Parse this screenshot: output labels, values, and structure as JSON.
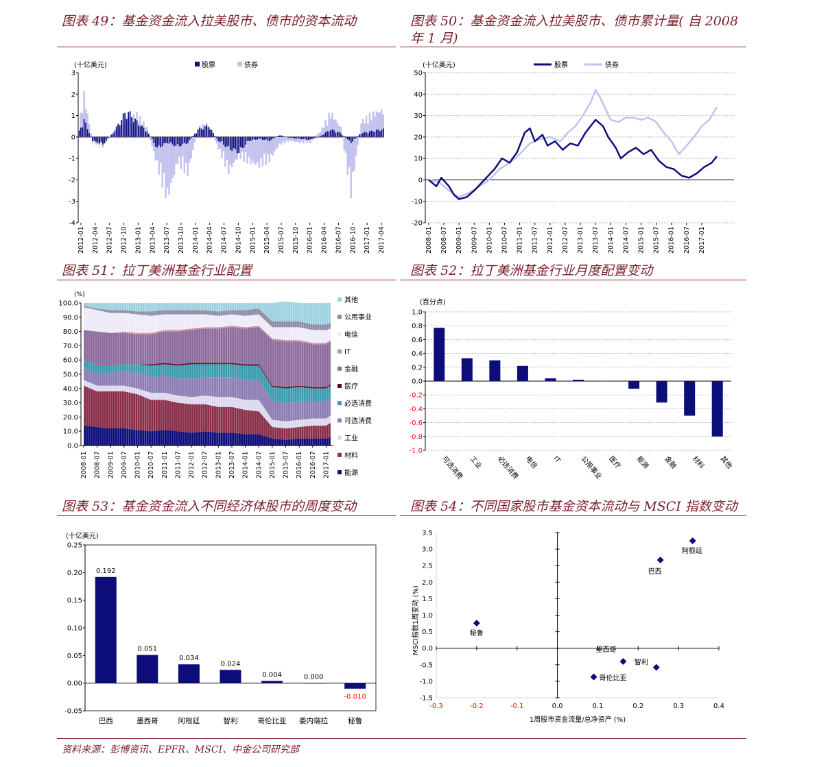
{
  "panels": {
    "p49": {
      "title": "图表 49：基金资金流入拉美股市、债市的资本流动"
    },
    "p50": {
      "title_line1": "图表 50：基金资金流入拉美股市、债市累计量( 自 2008",
      "title_line2": "年 1 月)"
    },
    "p51": {
      "title": "图表 51：拉丁美洲基金行业配置"
    },
    "p52": {
      "title": "图表 52：拉丁美洲基金行业月度配置变动"
    },
    "p53": {
      "title": "图表 53：基金资金流入不同经济体股市的周度变动"
    },
    "p54": {
      "title": "图表 54：不同国家股市基金资本流动与 MSCI 指数变动"
    }
  },
  "source": "资料来源：彭博资讯、EPFR、MSCI、中金公司研究部",
  "colors": {
    "navy": "#0d0d7a",
    "lavender": "#c2c2ee",
    "teal": "#3a9cae",
    "maroon": "#8a2e4a",
    "purple": "#8c7cb4",
    "grayviolet": "#8e8aa6",
    "lightlav": "#dcd8ee",
    "lightblue": "#9cd2df",
    "red": "#ff0000"
  },
  "chart_data": [
    {
      "id": "c49",
      "type": "bar",
      "unit_label": "(十亿美元)",
      "legend": [
        "股票",
        "债券"
      ],
      "ylim": [
        -4,
        3
      ],
      "yticks": [
        "3",
        "2",
        "1",
        "0",
        "-1",
        "-2",
        "-3",
        "-4"
      ],
      "xticks": [
        "2012-01",
        "2012-04",
        "2012-07",
        "2012-10",
        "2013-01",
        "2013-04",
        "2013-07",
        "2013-10",
        "2014-01",
        "2014-04",
        "2014-07",
        "2014-10",
        "2015-01",
        "2015-04",
        "2015-07",
        "2015-10",
        "2016-01",
        "2016-04",
        "2016-07",
        "2016-10",
        "2017-01",
        "2017-04"
      ],
      "series": [
        {
          "name": "股票",
          "anchors": [
            [
              0,
              0.3
            ],
            [
              3,
              0.9
            ],
            [
              8,
              -0.2
            ],
            [
              14,
              -0.4
            ],
            [
              20,
              0.2
            ],
            [
              28,
              1.4
            ],
            [
              34,
              0.8
            ],
            [
              40,
              0.3
            ],
            [
              46,
              -0.6
            ],
            [
              52,
              -0.3
            ],
            [
              58,
              -0.5
            ],
            [
              64,
              -0.3
            ],
            [
              70,
              0.4
            ],
            [
              76,
              0.6
            ],
            [
              82,
              -0.2
            ],
            [
              88,
              -0.6
            ],
            [
              94,
              -0.8
            ],
            [
              100,
              -0.2
            ],
            [
              106,
              -0.1
            ],
            [
              112,
              -0.2
            ],
            [
              118,
              0.1
            ],
            [
              124,
              -0.05
            ],
            [
              130,
              -0.1
            ],
            [
              136,
              -0.15
            ],
            [
              142,
              0.05
            ],
            [
              148,
              0.4
            ],
            [
              154,
              0.2
            ],
            [
              160,
              -0.3
            ],
            [
              166,
              0.2
            ],
            [
              172,
              0.3
            ],
            [
              178,
              0.4
            ]
          ]
        },
        {
          "name": "债券",
          "anchors": [
            [
              0,
              0.6
            ],
            [
              3,
              2.2
            ],
            [
              8,
              -0.3
            ],
            [
              14,
              -0.5
            ],
            [
              20,
              0.3
            ],
            [
              28,
              1.0
            ],
            [
              34,
              1.2
            ],
            [
              40,
              0.5
            ],
            [
              46,
              -1.5
            ],
            [
              52,
              -3.2
            ],
            [
              58,
              -1.3
            ],
            [
              64,
              -1.9
            ],
            [
              70,
              0.5
            ],
            [
              76,
              0.7
            ],
            [
              82,
              -0.6
            ],
            [
              88,
              -1.8
            ],
            [
              94,
              -1.0
            ],
            [
              100,
              -1.3
            ],
            [
              106,
              -1.5
            ],
            [
              112,
              -1.2
            ],
            [
              118,
              -0.4
            ],
            [
              124,
              -0.2
            ],
            [
              130,
              -0.3
            ],
            [
              136,
              -0.3
            ],
            [
              142,
              0.3
            ],
            [
              148,
              1.3
            ],
            [
              154,
              0.5
            ],
            [
              160,
              -2.9
            ],
            [
              166,
              0.8
            ],
            [
              172,
              1.2
            ],
            [
              178,
              1.4
            ]
          ]
        }
      ]
    },
    {
      "id": "c50",
      "type": "line",
      "unit_label": "(十亿美元)",
      "legend": [
        "股票",
        "债券"
      ],
      "ylim": [
        -20,
        50
      ],
      "yticks": [
        "50",
        "40",
        "30",
        "20",
        "10",
        "0",
        "-10",
        "-20"
      ],
      "xticks": [
        "2008-01",
        "2008-07",
        "2009-01",
        "2009-07",
        "2010-01",
        "2010-07",
        "2011-01",
        "2011-07",
        "2012-01",
        "2012-07",
        "2013-01",
        "2013-07",
        "2014-01",
        "2014-07",
        "2015-01",
        "2015-07",
        "2016-01",
        "2016-07",
        "2017-01"
      ],
      "x_range": [
        0,
        114
      ],
      "series": [
        {
          "name": "股票",
          "points": [
            [
              0,
              0
            ],
            [
              3,
              -3
            ],
            [
              5,
              1
            ],
            [
              8,
              -3
            ],
            [
              10,
              -7
            ],
            [
              12,
              -9
            ],
            [
              15,
              -8
            ],
            [
              18,
              -5
            ],
            [
              22,
              0
            ],
            [
              26,
              5
            ],
            [
              29,
              10
            ],
            [
              32,
              8
            ],
            [
              35,
              13
            ],
            [
              38,
              22
            ],
            [
              40,
              24
            ],
            [
              42,
              18
            ],
            [
              45,
              21
            ],
            [
              47,
              16
            ],
            [
              50,
              18
            ],
            [
              53,
              14
            ],
            [
              56,
              17
            ],
            [
              59,
              16
            ],
            [
              62,
              22
            ],
            [
              66,
              28
            ],
            [
              69,
              25
            ],
            [
              71,
              20
            ],
            [
              74,
              15
            ],
            [
              76,
              10
            ],
            [
              79,
              13
            ],
            [
              82,
              15
            ],
            [
              85,
              12
            ],
            [
              88,
              14
            ],
            [
              91,
              9
            ],
            [
              94,
              6
            ],
            [
              97,
              5
            ],
            [
              100,
              2
            ],
            [
              103,
              1
            ],
            [
              106,
              3
            ],
            [
              109,
              6
            ],
            [
              112,
              8
            ],
            [
              114,
              11
            ]
          ]
        },
        {
          "name": "债券",
          "points": [
            [
              0,
              0
            ],
            [
              4,
              -1
            ],
            [
              8,
              -5
            ],
            [
              12,
              -8
            ],
            [
              16,
              -6
            ],
            [
              20,
              -3
            ],
            [
              24,
              0
            ],
            [
              28,
              5
            ],
            [
              32,
              8
            ],
            [
              36,
              12
            ],
            [
              40,
              17
            ],
            [
              44,
              19
            ],
            [
              48,
              20
            ],
            [
              52,
              18
            ],
            [
              55,
              22
            ],
            [
              58,
              25
            ],
            [
              61,
              30
            ],
            [
              64,
              36
            ],
            [
              66,
              42
            ],
            [
              68,
              38
            ],
            [
              70,
              33
            ],
            [
              72,
              28
            ],
            [
              75,
              27
            ],
            [
              78,
              29
            ],
            [
              81,
              29
            ],
            [
              84,
              28
            ],
            [
              87,
              29
            ],
            [
              90,
              27
            ],
            [
              93,
              22
            ],
            [
              96,
              18
            ],
            [
              99,
              12
            ],
            [
              102,
              16
            ],
            [
              105,
              20
            ],
            [
              108,
              25
            ],
            [
              111,
              28
            ],
            [
              114,
              34
            ]
          ]
        }
      ]
    },
    {
      "id": "c51",
      "type": "area",
      "unit_label": "(%)",
      "ylim": [
        0,
        100
      ],
      "yticks": [
        "100.0",
        "90.0",
        "80.0",
        "70.0",
        "60.0",
        "50.0",
        "40.0",
        "30.0",
        "20.0",
        "10.0",
        "0.0"
      ],
      "xticks": [
        "2008-01",
        "2008-07",
        "2009-01",
        "2009-07",
        "2010-01",
        "2010-07",
        "2011-01",
        "2011-07",
        "2012-01",
        "2012-07",
        "2013-01",
        "2013-07",
        "2014-01",
        "2014-07",
        "2015-01",
        "2015-07",
        "2016-01",
        "2016-07",
        "2017-01"
      ],
      "legend": [
        "其他",
        "公用事业",
        "电信",
        "IT",
        "金融",
        "医疗",
        "必选消费",
        "可选消费",
        "工业",
        "材料",
        "能源"
      ],
      "stack_order": [
        "能源",
        "材料",
        "工业",
        "可选消费",
        "必选消费",
        "医疗",
        "金融",
        "IT",
        "电信",
        "公用事业",
        "其他"
      ],
      "times": [
        0,
        6,
        12,
        18,
        24,
        30,
        36,
        42,
        48,
        54,
        60,
        66,
        72,
        78,
        84,
        90,
        96,
        102,
        108,
        110
      ],
      "layers": [
        [
          14,
          13,
          12,
          12,
          11,
          10,
          11,
          10,
          9,
          10,
          9,
          9,
          8,
          8,
          5,
          4,
          5,
          5,
          5,
          6
        ],
        [
          28,
          25,
          26,
          26,
          25,
          22,
          21,
          20,
          20,
          19,
          18,
          18,
          17,
          16,
          8,
          8,
          8,
          9,
          9,
          10
        ],
        [
          4,
          4,
          4,
          4,
          4,
          5,
          5,
          5,
          5,
          6,
          7,
          7,
          7,
          8,
          5,
          5,
          5,
          5,
          5,
          5
        ],
        [
          9,
          8,
          9,
          10,
          11,
          11,
          12,
          12,
          13,
          13,
          14,
          14,
          14,
          14,
          13,
          13,
          13,
          12,
          12,
          12
        ],
        [
          5,
          6,
          5,
          5,
          6,
          8,
          8,
          9,
          10,
          9,
          9,
          9,
          10,
          10,
          10,
          10,
          10,
          9,
          9,
          9
        ],
        [
          0,
          0,
          0,
          0,
          0,
          1,
          1,
          1,
          1,
          1,
          1,
          1,
          1,
          1,
          1,
          1,
          1,
          1,
          1,
          1
        ],
        [
          21,
          24,
          23,
          22,
          21,
          21,
          22,
          23,
          23,
          24,
          24,
          25,
          25,
          26,
          32,
          32,
          31,
          30,
          30,
          30
        ],
        [
          0,
          0,
          0,
          1,
          1,
          1,
          1,
          1,
          1,
          1,
          1,
          1,
          1,
          1,
          1,
          1,
          1,
          1,
          1,
          1
        ],
        [
          16,
          15,
          14,
          13,
          13,
          12,
          11,
          11,
          10,
          9,
          8,
          8,
          8,
          8,
          8,
          9,
          9,
          9,
          9,
          8
        ],
        [
          1,
          1,
          2,
          2,
          2,
          3,
          3,
          3,
          3,
          3,
          3,
          3,
          4,
          4,
          4,
          4,
          4,
          4,
          4,
          4
        ],
        [
          2,
          4,
          5,
          5,
          6,
          6,
          5,
          5,
          5,
          5,
          6,
          5,
          5,
          4,
          13,
          14,
          13,
          15,
          15,
          14
        ]
      ]
    },
    {
      "id": "c52",
      "type": "bar",
      "unit_label": "(百分点)",
      "ylim": [
        -1.0,
        1.0
      ],
      "yticks": [
        "1.0",
        "0.8",
        "0.6",
        "0.4",
        "0.2",
        "0.0",
        "-0.2",
        "-0.4",
        "-0.6",
        "-0.8",
        "-1.0"
      ],
      "categories": [
        "可选消费",
        "工业",
        "必选消费",
        "电信",
        "IT",
        "公用事业",
        "医疗",
        "能源",
        "金融",
        "材料",
        "其他"
      ],
      "values": [
        0.77,
        0.33,
        0.3,
        0.22,
        0.04,
        0.02,
        0.005,
        -0.11,
        -0.31,
        -0.5,
        -0.8
      ]
    },
    {
      "id": "c53",
      "type": "bar",
      "unit_label": "(十亿美元)",
      "ylim": [
        -0.05,
        0.25
      ],
      "yticks": [
        "0.25",
        "0.20",
        "0.15",
        "0.10",
        "0.05",
        "0.00",
        "-0.05"
      ],
      "categories": [
        "巴西",
        "墨西哥",
        "阿根廷",
        "智利",
        "哥伦比亚",
        "委内瑞拉",
        "秘鲁"
      ],
      "values": [
        0.192,
        0.051,
        0.034,
        0.024,
        0.004,
        0.0,
        -0.01
      ],
      "labels": [
        "0.192",
        "0.051",
        "0.034",
        "0.024",
        "0.004",
        "0.000",
        "-0.010"
      ]
    },
    {
      "id": "c54",
      "type": "scatter",
      "xlabel": "1周股市资金流量/总净资产 (%)",
      "ylabel": "MSCI指数1周变动 (%)",
      "xlim": [
        -0.3,
        0.4
      ],
      "ylim": [
        -1.5,
        3.5
      ],
      "xticks": [
        "-0.3",
        "-0.2",
        "-0.1",
        "0.0",
        "0.1",
        "0.2",
        "0.3",
        "0.4"
      ],
      "yticks": [
        "3.5",
        "3.0",
        "2.5",
        "2.0",
        "1.5",
        "1.0",
        "0.5",
        "0.0",
        "-0.5",
        "-1.0",
        "-1.5"
      ],
      "points": [
        {
          "label": "阿根廷",
          "x": 0.335,
          "y": 3.25
        },
        {
          "label": "巴西",
          "x": 0.255,
          "y": 2.67
        },
        {
          "label": "秘鲁",
          "x": -0.2,
          "y": 0.76
        },
        {
          "label": "墨西哥",
          "x": 0.163,
          "y": -0.4
        },
        {
          "label": "智利",
          "x": 0.245,
          "y": -0.58
        },
        {
          "label": "哥伦比亚",
          "x": 0.09,
          "y": -0.87
        }
      ]
    }
  ]
}
